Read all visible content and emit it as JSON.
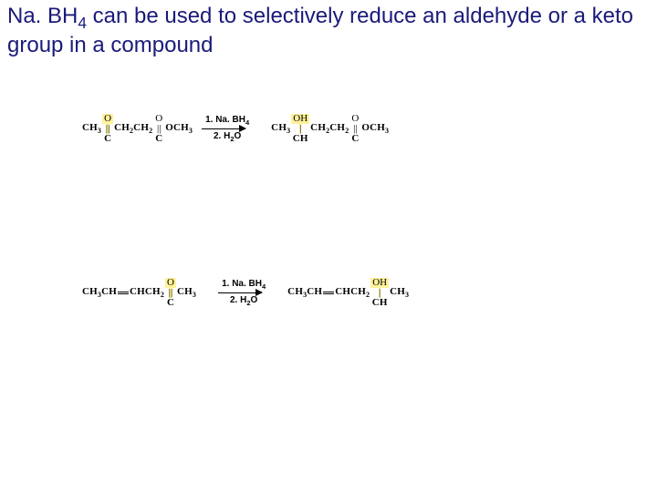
{
  "heading_html": "Na. BH<span class=\"sub4\">4</span> can be used to selectively reduce an aldehyde or a keto group in a compound",
  "atoms": {
    "O": "O",
    "C": "C",
    "OH": "OH",
    "dbl": "||",
    "sgl": "|"
  },
  "r1": {
    "sm": {
      "pre": "CH<span class=\"n3\">3</span>",
      "mid": "CH<span class=\"n2\">2</span>CH<span class=\"n2\">2</span>",
      "post": "OCH<span class=\"n3\">3</span>"
    },
    "prod": {
      "pre": "CH<span class=\"n3\">3</span>",
      "under": "CH",
      "mid": "CH<span class=\"n2\">2</span>CH<span class=\"n2\">2</span>",
      "post": "OCH<span class=\"n3\">3</span>"
    }
  },
  "r2": {
    "sm": {
      "pre": "CH<span class=\"n3\">3</span>CH",
      "mid": "CHCH<span class=\"n2\">2</span>",
      "post": "CH<span class=\"n3\">3</span>"
    },
    "prod": {
      "pre": "CH<span class=\"n3\">3</span>CH",
      "mid": "CHCH<span class=\"n2\">2</span>",
      "under": "CH",
      "post": "CH<span class=\"n3\">3</span>"
    }
  },
  "reagents": {
    "line1": "1. Na. BH<span class=\"sub\">4</span>",
    "line2": "2. H<span class=\"sub\">2</span>O"
  },
  "colors": {
    "highlight": "#fff29a",
    "heading": "#1a1a7a",
    "bg": "#ffffff"
  }
}
